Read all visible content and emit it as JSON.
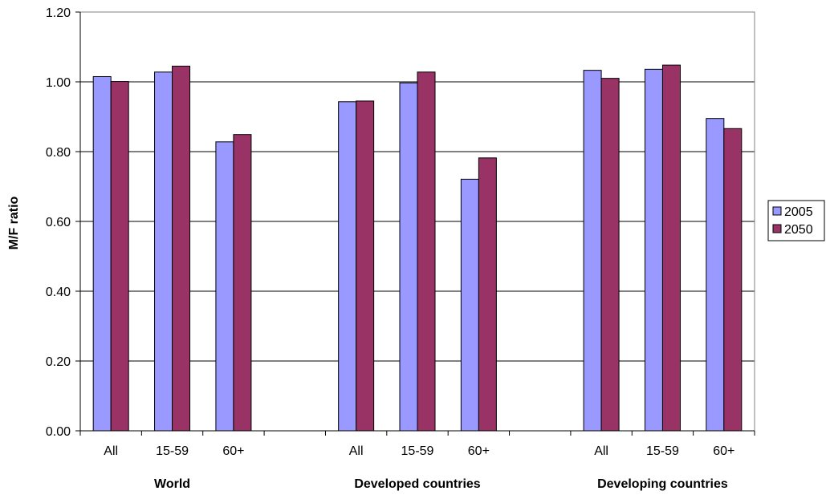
{
  "chart_data": {
    "type": "bar",
    "title": "",
    "ylabel": "M/F ratio",
    "xlabel": "",
    "ylim": [
      0,
      1.2
    ],
    "y_ticks": [
      "0.00",
      "0.20",
      "0.40",
      "0.60",
      "0.80",
      "1.00",
      "1.20"
    ],
    "grid": "horizontal",
    "legend_position": "right",
    "categories": [
      "All",
      "15-59",
      "60+",
      "",
      "All",
      "15-59",
      "60+",
      "",
      "All",
      "15-59",
      "60+"
    ],
    "groups": [
      {
        "label": "World",
        "first": 0,
        "last": 2
      },
      {
        "label": "Developed countries",
        "first": 4,
        "last": 6
      },
      {
        "label": "Developing countries",
        "first": 8,
        "last": 10
      }
    ],
    "series": [
      {
        "name": "2005",
        "color": "#9999ff",
        "values": [
          1.015,
          1.028,
          null,
          null,
          0.943,
          0.997,
          null,
          null,
          1.033,
          1.036,
          null
        ]
      },
      {
        "name": "2050",
        "color": "#993366",
        "values": [
          1.001,
          1.045,
          null,
          null,
          0.945,
          1.028,
          null,
          null,
          1.01,
          1.048,
          null
        ]
      }
    ]
  }
}
